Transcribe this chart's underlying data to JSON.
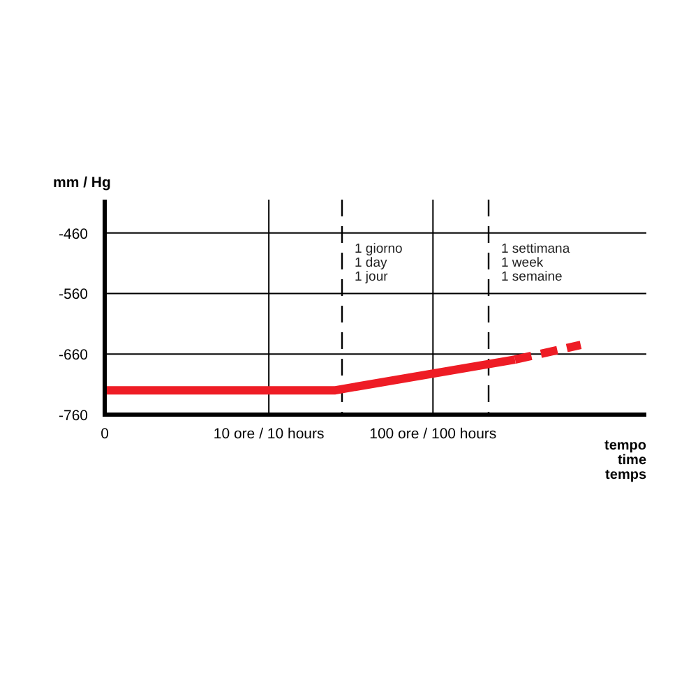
{
  "chart_data": {
    "type": "line",
    "ylabel": "mm / Hg",
    "xlabel": "tempo\ntime\ntemps",
    "categories": [
      "0",
      null,
      null,
      null,
      null,
      null,
      null,
      null,
      null,
      null,
      "10 ore / 10 hours",
      null,
      null,
      null,
      null,
      null,
      null,
      null,
      null,
      null,
      "100 ore / 100 hours",
      null,
      null,
      null,
      null,
      null,
      null,
      null,
      null,
      null,
      null,
      null,
      null
    ],
    "ylim": [
      -760,
      -405
    ],
    "yticks": [
      -760,
      -660,
      -560,
      -460
    ],
    "grid": true,
    "series": [
      {
        "color": "#ee1c25",
        "line_style": "solid",
        "values": [
          -720,
          null,
          null,
          null,
          null,
          null,
          null,
          null,
          null,
          null,
          null,
          null,
          null,
          null,
          -720,
          null,
          null,
          null,
          null,
          null,
          null,
          null,
          null,
          null,
          null,
          -669,
          null,
          null,
          null,
          null,
          null,
          null,
          null
        ]
      },
      {
        "color": "#ee1c25",
        "line_style": "dashed",
        "values": [
          null,
          null,
          null,
          null,
          null,
          null,
          null,
          null,
          null,
          null,
          null,
          null,
          null,
          null,
          null,
          null,
          null,
          null,
          null,
          null,
          null,
          null,
          null,
          null,
          null,
          -669,
          null,
          null,
          null,
          -645,
          null,
          null,
          null
        ]
      }
    ],
    "annotations": [
      "1 giorno\n1 day\n1 jour",
      "1 settimana\n1 week\n1 semaine"
    ]
  }
}
